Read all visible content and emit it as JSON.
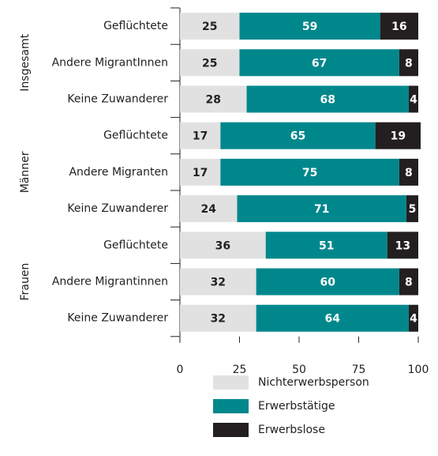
{
  "chart_data": {
    "type": "bar",
    "orientation": "horizontal",
    "stacked": true,
    "groups": [
      {
        "name": "Insgesamt",
        "categories": [
          "Geflüchtete",
          "Andere MigrantInnen",
          "Keine Zuwanderer"
        ]
      },
      {
        "name": "Männer",
        "categories": [
          "Geflüchtete",
          "Andere Migranten",
          "Keine Zuwanderer"
        ]
      },
      {
        "name": "Frauen",
        "categories": [
          "Geflüchtete",
          "Andere Migrantinnen",
          "Keine Zuwanderer"
        ]
      }
    ],
    "series": [
      {
        "name": "Nichterwerbsperson",
        "color": "#e1e1e1",
        "label_color": "#222222",
        "values": [
          25,
          25,
          28,
          17,
          17,
          24,
          36,
          32,
          32
        ]
      },
      {
        "name": "Erwerbstätige",
        "color": "#00878c",
        "label_color": "#ffffff",
        "values": [
          59,
          67,
          68,
          65,
          75,
          71,
          51,
          60,
          64
        ]
      },
      {
        "name": "Erwerbslose",
        "color": "#231f20",
        "label_color": "#ffffff",
        "values": [
          16,
          8,
          4,
          19,
          8,
          5,
          13,
          8,
          4
        ]
      }
    ],
    "xlim": [
      0,
      100
    ],
    "xticks": [
      0,
      25,
      50,
      75,
      100
    ]
  }
}
